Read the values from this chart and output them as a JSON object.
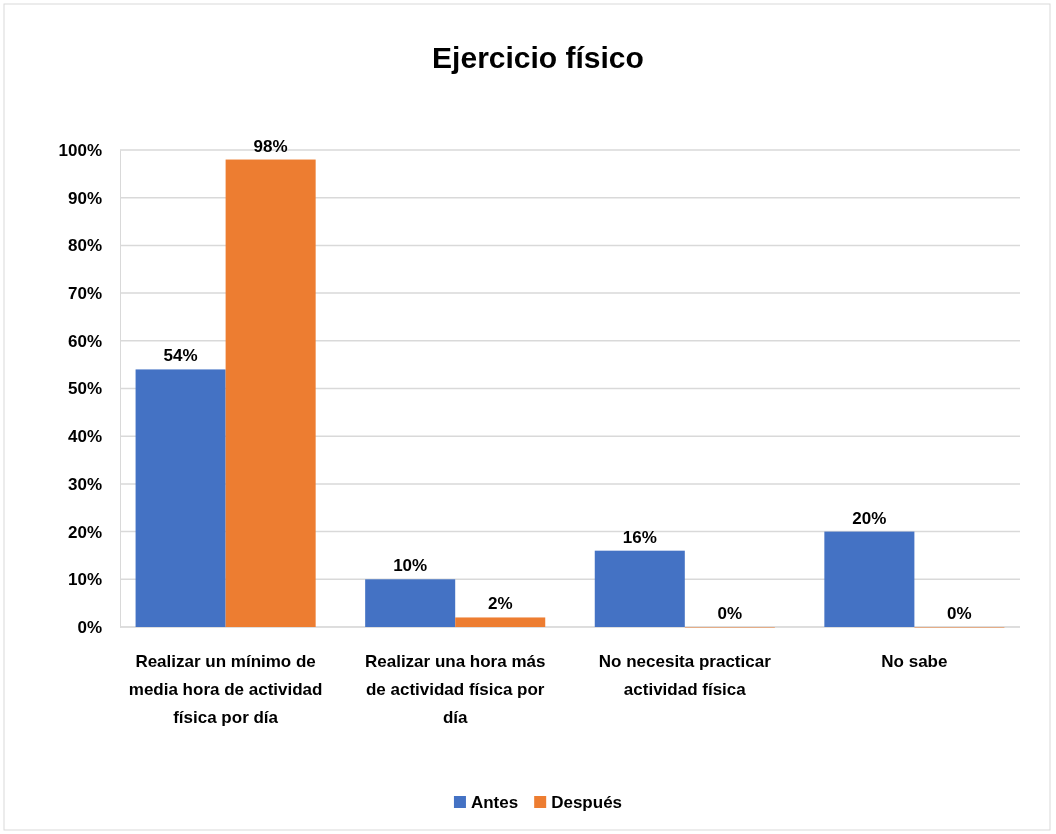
{
  "chart_data": {
    "type": "bar",
    "title": "Ejercicio físico",
    "categories": [
      "Realizar un mínimo de media hora de actividad física por día",
      "Realizar una hora más de actividad física por día",
      "No necesita practicar actividad física",
      "No sabe"
    ],
    "series": [
      {
        "name": "Antes",
        "color": "#4472c4",
        "values": [
          54,
          10,
          16,
          20
        ],
        "value_labels": [
          "54%",
          "10%",
          "16%",
          "20%"
        ]
      },
      {
        "name": "Después",
        "color": "#ed7d31",
        "values": [
          98,
          2,
          0,
          0
        ],
        "value_labels": [
          "98%",
          "2%",
          "0%",
          "0%"
        ]
      }
    ],
    "ylim": [
      0,
      100
    ],
    "yticks": [
      {
        "value": 0,
        "label": "0%"
      },
      {
        "value": 10,
        "label": "10%"
      },
      {
        "value": 20,
        "label": "20%"
      },
      {
        "value": 30,
        "label": "30%"
      },
      {
        "value": 40,
        "label": "40%"
      },
      {
        "value": 50,
        "label": "50%"
      },
      {
        "value": 60,
        "label": "60%"
      },
      {
        "value": 70,
        "label": "70%"
      },
      {
        "value": 80,
        "label": "80%"
      },
      {
        "value": 90,
        "label": "90%"
      },
      {
        "value": 100,
        "label": "100%"
      }
    ],
    "grid": "y",
    "legend": "bottom"
  }
}
